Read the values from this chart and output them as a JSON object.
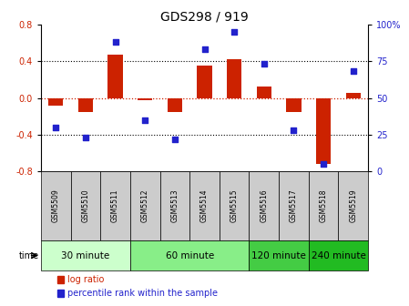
{
  "title": "GDS298 / 919",
  "samples": [
    "GSM5509",
    "GSM5510",
    "GSM5511",
    "GSM5512",
    "GSM5513",
    "GSM5514",
    "GSM5515",
    "GSM5516",
    "GSM5517",
    "GSM5518",
    "GSM5519"
  ],
  "log_ratio": [
    -0.08,
    -0.15,
    0.47,
    -0.02,
    -0.15,
    0.35,
    0.42,
    0.12,
    -0.15,
    -0.72,
    0.05
  ],
  "percentile": [
    30,
    23,
    88,
    35,
    22,
    83,
    95,
    73,
    28,
    5,
    68
  ],
  "ylim": [
    -0.8,
    0.8
  ],
  "yticks": [
    -0.8,
    -0.4,
    0.0,
    0.4,
    0.8
  ],
  "right_yticks": [
    0,
    25,
    50,
    75,
    100
  ],
  "bar_color": "#CC2200",
  "dot_color": "#2222CC",
  "grid_color": "#000000",
  "zero_line_color": "#CC2200",
  "background_color": "#FFFFFF",
  "time_groups": [
    {
      "label": "30 minute",
      "start": 0,
      "end": 3,
      "color": "#CCFFCC"
    },
    {
      "label": "60 minute",
      "start": 3,
      "end": 7,
      "color": "#88EE88"
    },
    {
      "label": "120 minute",
      "start": 7,
      "end": 9,
      "color": "#44CC44"
    },
    {
      "label": "240 minute",
      "start": 9,
      "end": 11,
      "color": "#22BB22"
    }
  ],
  "time_label": "time",
  "legend_bar_label": "log ratio",
  "legend_dot_label": "percentile rank within the sample",
  "title_fontsize": 10,
  "tick_fontsize": 7,
  "sample_fontsize": 5.5,
  "group_fontsize": 7.5,
  "legend_fontsize": 7,
  "bar_width": 0.5
}
